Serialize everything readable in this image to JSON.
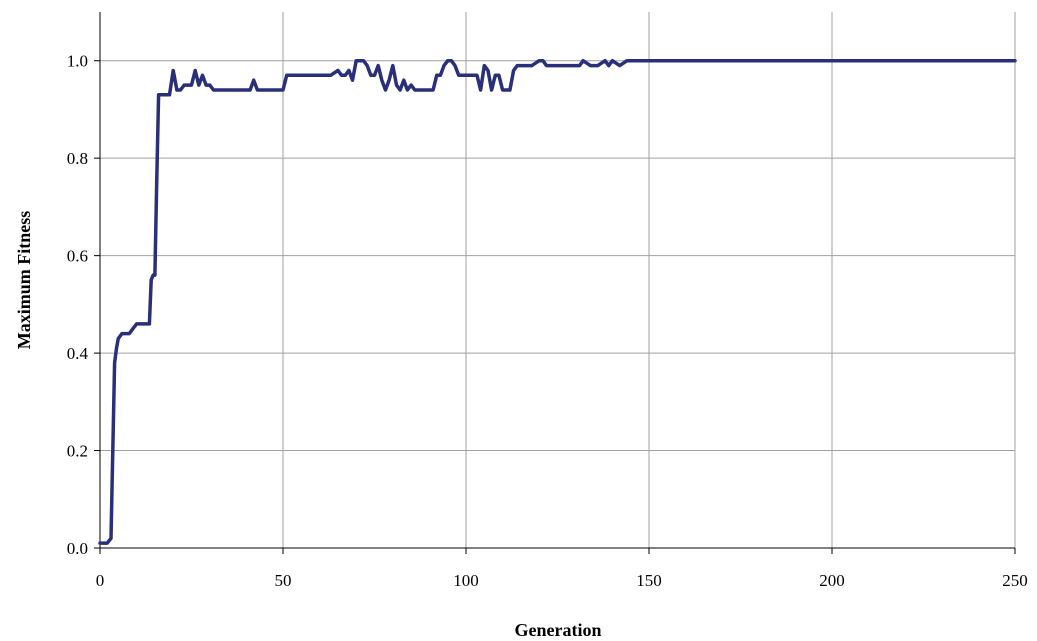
{
  "chart_data": {
    "type": "line",
    "xlabel": "Generation",
    "ylabel": "Maximum Fitness",
    "xlim": [
      0,
      250
    ],
    "ylim": [
      0,
      1.1
    ],
    "xticks": [
      0,
      50,
      100,
      150,
      200,
      250
    ],
    "xtick_labels": [
      "0",
      "50",
      "100",
      "150",
      "200",
      "250"
    ],
    "yticks": [
      0,
      0.2,
      0.4,
      0.6,
      0.8,
      1.0
    ],
    "ytick_labels": [
      "0.0",
      "0.2",
      "0.4",
      "0.6",
      "0.8",
      "1.0"
    ],
    "grid": true,
    "legend": "none",
    "series": [
      {
        "color": "#2a2f7a",
        "x": [
          0,
          1,
          2,
          3,
          3.5,
          4,
          4.5,
          5,
          6,
          7,
          8,
          9,
          10,
          11,
          12,
          13,
          13.5,
          14,
          14.5,
          15,
          15.5,
          16,
          17,
          18,
          19,
          20,
          21,
          22,
          23,
          24,
          25,
          26,
          27,
          28,
          29,
          30,
          31,
          33,
          35,
          37,
          39,
          41,
          42,
          43,
          44,
          46,
          48,
          50,
          51,
          53,
          55,
          57,
          59,
          61,
          63,
          65,
          66,
          67,
          68,
          69,
          70,
          71,
          72,
          73,
          74,
          75,
          76,
          77,
          78,
          79,
          80,
          81,
          82,
          83,
          84,
          85,
          86,
          87,
          88,
          89,
          90,
          91,
          92,
          93,
          94,
          95,
          96,
          97,
          98,
          99,
          100,
          101,
          102,
          103,
          104,
          105,
          106,
          107,
          108,
          109,
          110,
          111,
          112,
          113,
          114,
          116,
          118,
          120,
          121,
          122,
          124,
          126,
          128,
          130,
          131,
          132,
          134,
          136,
          138,
          139,
          140,
          142,
          144,
          146,
          150,
          160,
          170,
          180,
          190,
          200,
          210,
          220,
          230,
          240,
          245,
          250
        ],
        "y": [
          0.01,
          0.01,
          0.01,
          0.02,
          0.2,
          0.38,
          0.41,
          0.43,
          0.44,
          0.44,
          0.44,
          0.45,
          0.46,
          0.46,
          0.46,
          0.46,
          0.46,
          0.55,
          0.56,
          0.56,
          0.75,
          0.93,
          0.93,
          0.93,
          0.93,
          0.98,
          0.94,
          0.94,
          0.95,
          0.95,
          0.95,
          0.98,
          0.95,
          0.97,
          0.95,
          0.95,
          0.94,
          0.94,
          0.94,
          0.94,
          0.94,
          0.94,
          0.96,
          0.94,
          0.94,
          0.94,
          0.94,
          0.94,
          0.97,
          0.97,
          0.97,
          0.97,
          0.97,
          0.97,
          0.97,
          0.98,
          0.97,
          0.97,
          0.98,
          0.96,
          1.0,
          1.0,
          1.0,
          0.99,
          0.97,
          0.97,
          0.99,
          0.96,
          0.94,
          0.96,
          0.99,
          0.95,
          0.94,
          0.96,
          0.94,
          0.95,
          0.94,
          0.94,
          0.94,
          0.94,
          0.94,
          0.94,
          0.97,
          0.97,
          0.99,
          1.0,
          1.0,
          0.99,
          0.97,
          0.97,
          0.97,
          0.97,
          0.97,
          0.97,
          0.94,
          0.99,
          0.98,
          0.94,
          0.97,
          0.97,
          0.94,
          0.94,
          0.94,
          0.98,
          0.99,
          0.99,
          0.99,
          1.0,
          1.0,
          0.99,
          0.99,
          0.99,
          0.99,
          0.99,
          0.99,
          1.0,
          0.99,
          0.99,
          1.0,
          0.99,
          1.0,
          0.99,
          1.0,
          1.0,
          1.0,
          1.0,
          1.0,
          1.0,
          1.0,
          1.0,
          1.0,
          1.0,
          1.0,
          1.0,
          1.0,
          1.0
        ]
      }
    ]
  }
}
